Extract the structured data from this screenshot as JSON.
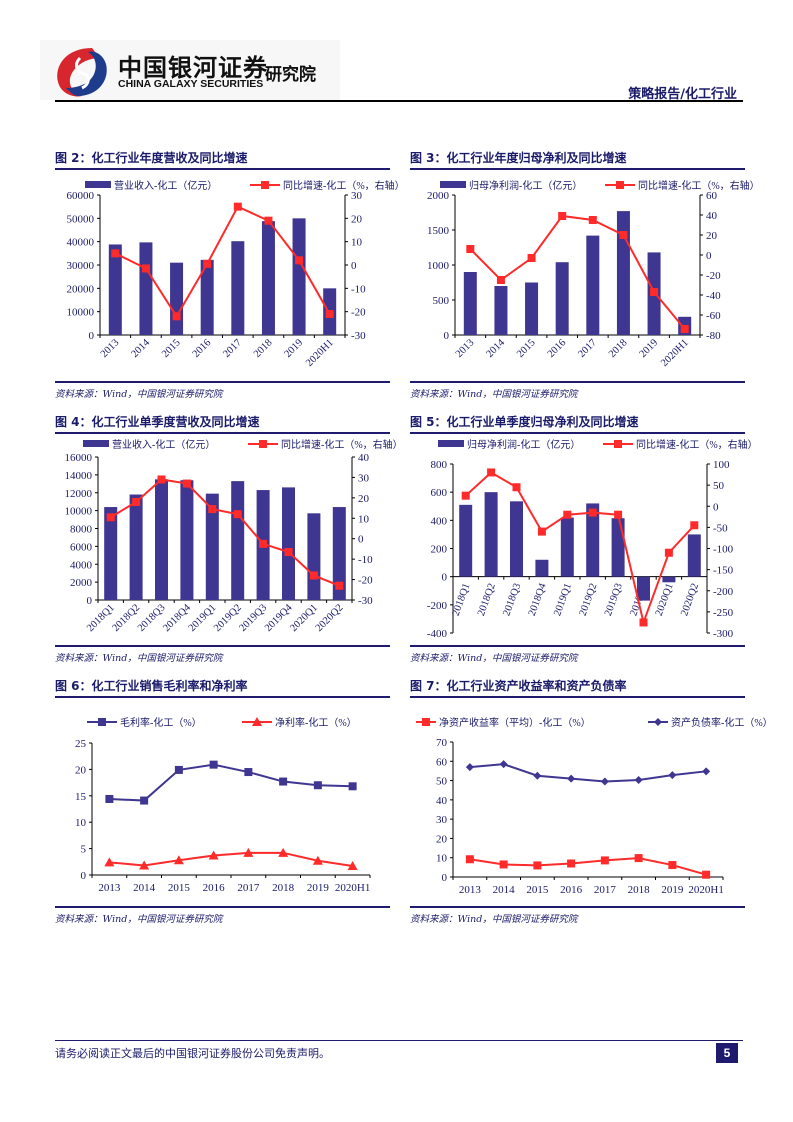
{
  "header": {
    "logo_cn": "中国银河证券",
    "logo_en": "CHINA GALAXY SECURITIES",
    "logo_inst": "研究院",
    "category": "策略报告/化工行业"
  },
  "footer": {
    "disclaimer": "请务必阅读正文最后的中国银河证券股份公司免责声明。",
    "page": "5"
  },
  "colors": {
    "bar": "#3f3691",
    "line_red": "#ff2a2a",
    "navy": "#1f1a6e"
  },
  "chart_data": [
    {
      "type": "bar+line",
      "title": "图 2：化工行业年度营收及同比增速",
      "source": "资料来源：Wind，中国银河证券研究院",
      "categories": [
        "2013",
        "2014",
        "2015",
        "2016",
        "2017",
        "2018",
        "2019",
        "2020H1"
      ],
      "series": [
        {
          "name": "营业收入-化工（亿元）",
          "kind": "bar",
          "axis": "left",
          "values": [
            38800,
            39700,
            31000,
            32200,
            40200,
            48800,
            50000,
            20000
          ]
        },
        {
          "name": "同比增速-化工（%，右轴）",
          "kind": "line",
          "axis": "right",
          "values": [
            5,
            -1.5,
            -22,
            0.5,
            25,
            19,
            2,
            -21
          ]
        }
      ],
      "ylim": [
        0,
        60000
      ],
      "yticks": [
        0,
        10000,
        20000,
        30000,
        40000,
        50000,
        60000
      ],
      "y2lim": [
        -30,
        30
      ],
      "y2ticks": [
        -30,
        -20,
        -10,
        0,
        10,
        20,
        30
      ],
      "rotate_x": true,
      "legend": "top"
    },
    {
      "type": "bar+line",
      "title": "图 3：化工行业年度归母净利及同比增速",
      "source": "资料来源：Wind，中国银河证券研究院",
      "categories": [
        "2013",
        "2014",
        "2015",
        "2016",
        "2017",
        "2018",
        "2019",
        "2020H1"
      ],
      "series": [
        {
          "name": "归母净利润-化工（亿元）",
          "kind": "bar",
          "axis": "left",
          "values": [
            900,
            700,
            750,
            1040,
            1420,
            1770,
            1180,
            260
          ]
        },
        {
          "name": "同比增速-化工（%，右轴）",
          "kind": "line",
          "axis": "right",
          "values": [
            6,
            -25,
            -3,
            39,
            35,
            20,
            -37,
            -74
          ]
        }
      ],
      "ylim": [
        0,
        2000
      ],
      "yticks": [
        0,
        500,
        1000,
        1500,
        2000
      ],
      "y2lim": [
        -80,
        60
      ],
      "y2ticks": [
        -80,
        -60,
        -40,
        -20,
        0,
        20,
        40,
        60
      ],
      "rotate_x": true,
      "legend": "top"
    },
    {
      "type": "bar+line",
      "title": "图 4：化工行业单季度营收及同比增速",
      "source": "资料来源：Wind，中国银河证券研究院",
      "categories": [
        "2018Q1",
        "2018Q2",
        "2018Q3",
        "2018Q4",
        "2019Q1",
        "2019Q2",
        "2019Q3",
        "2019Q4",
        "2020Q1",
        "2020Q2"
      ],
      "series": [
        {
          "name": "营业收入-化工（亿元）",
          "kind": "bar",
          "axis": "left",
          "values": [
            10400,
            11800,
            13500,
            13400,
            11900,
            13300,
            12300,
            12600,
            9700,
            10400
          ]
        },
        {
          "name": "同比增速-化工（%，右轴）",
          "kind": "line",
          "axis": "right",
          "values": [
            10.5,
            18,
            29,
            27,
            14.5,
            12,
            -2.5,
            -6.5,
            -18,
            -23
          ]
        }
      ],
      "ylim": [
        0,
        16000
      ],
      "yticks": [
        0,
        2000,
        4000,
        6000,
        8000,
        10000,
        12000,
        14000,
        16000
      ],
      "y2lim": [
        -30,
        40
      ],
      "y2ticks": [
        -30,
        -20,
        -10,
        0,
        10,
        20,
        30,
        40
      ],
      "rotate_x": true,
      "legend": "top"
    },
    {
      "type": "bar+line",
      "title": "图 5：化工行业单季度归母净利及同比增速",
      "source": "资料来源：Wind，中国银河证券研究院",
      "categories": [
        "2018Q1",
        "2018Q2",
        "2018Q3",
        "2018Q4",
        "2019Q1",
        "2019Q2",
        "2019Q3",
        "2019Q4",
        "2020Q1",
        "2020Q2"
      ],
      "series": [
        {
          "name": "归母净利润-化工（亿元）",
          "kind": "bar",
          "axis": "left",
          "values": [
            510,
            600,
            535,
            120,
            420,
            520,
            415,
            -170,
            -40,
            300
          ]
        },
        {
          "name": "同比增速-化工（%，右轴）",
          "kind": "line",
          "axis": "right",
          "values": [
            25,
            80,
            45,
            -60,
            -20,
            -15,
            -20,
            -275,
            -110,
            -45
          ]
        }
      ],
      "ylim": [
        -400,
        800
      ],
      "yticks": [
        -400,
        -200,
        0,
        200,
        400,
        600,
        800
      ],
      "y2lim": [
        -300,
        100
      ],
      "y2ticks": [
        -300,
        -250,
        -200,
        -150,
        -100,
        -50,
        0,
        50,
        100
      ],
      "rotate_x": true,
      "legend": "top"
    },
    {
      "type": "line",
      "title": "图 6：化工行业销售毛利率和净利率",
      "source": "资料来源：Wind，中国银河证券研究院",
      "categories": [
        "2013",
        "2014",
        "2015",
        "2016",
        "2017",
        "2018",
        "2019",
        "2020H1"
      ],
      "series": [
        {
          "name": "毛利率-化工（%）",
          "kind": "line",
          "marker": "square",
          "color": "#3f3691",
          "values": [
            14.4,
            14.1,
            19.9,
            20.9,
            19.5,
            17.7,
            17.0,
            16.8
          ]
        },
        {
          "name": "净利率-化工（%）",
          "kind": "line",
          "marker": "triangle",
          "color": "#ff2a2a",
          "values": [
            2.4,
            1.8,
            2.8,
            3.7,
            4.2,
            4.2,
            2.7,
            1.7
          ]
        }
      ],
      "ylim": [
        0,
        25
      ],
      "yticks": [
        0,
        5,
        10,
        15,
        20,
        25
      ],
      "rotate_x": false,
      "legend": "top"
    },
    {
      "type": "line",
      "title": "图 7：化工行业资产收益率和资产负债率",
      "source": "资料来源：Wind，中国银河证券研究院",
      "categories": [
        "2013",
        "2014",
        "2015",
        "2016",
        "2017",
        "2018",
        "2019",
        "2020H1"
      ],
      "series": [
        {
          "name": "净资产收益率（平均）-化工（%）",
          "kind": "line",
          "marker": "square",
          "color": "#ff2a2a",
          "values": [
            9.2,
            6.5,
            6.0,
            7.0,
            8.6,
            9.8,
            6.2,
            1.2
          ]
        },
        {
          "name": "资产负债率-化工（%）",
          "kind": "line",
          "marker": "diamond",
          "color": "#3f3691",
          "values": [
            57,
            58.5,
            52.5,
            51,
            49.5,
            50.3,
            52.8,
            54.8
          ]
        }
      ],
      "ylim": [
        0,
        70
      ],
      "yticks": [
        0,
        10,
        20,
        30,
        40,
        50,
        60,
        70
      ],
      "rotate_x": false,
      "legend": "top"
    }
  ]
}
